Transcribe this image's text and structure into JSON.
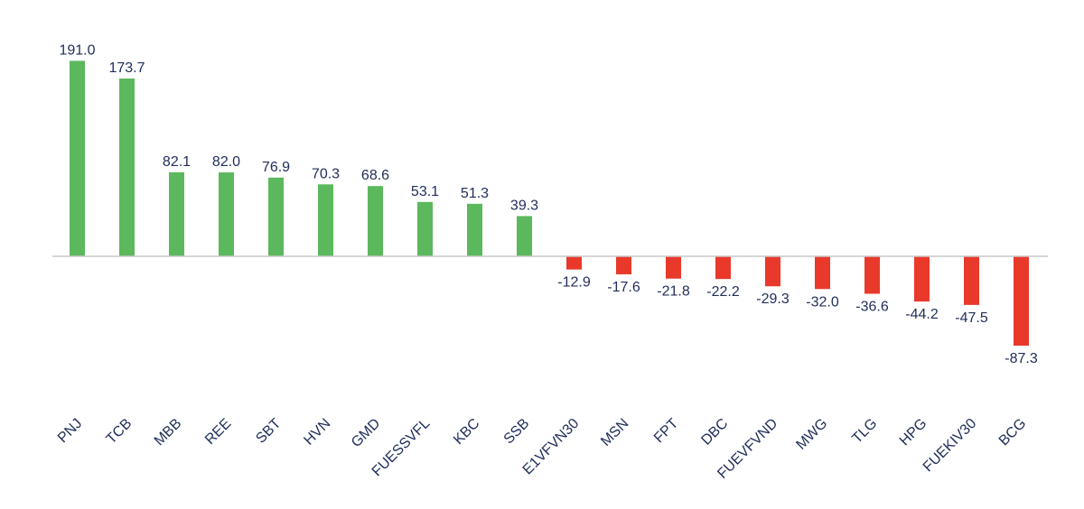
{
  "chart_data": {
    "type": "bar",
    "title": "",
    "xlabel": "",
    "ylabel": "",
    "grid": false,
    "legend": "none",
    "colors": {
      "positive": "#5cb85c",
      "negative": "#e8392b",
      "axis": "#c8c8c8",
      "text": "#1f2d5a"
    },
    "categories": [
      "PNJ",
      "TCB",
      "MBB",
      "REE",
      "SBT",
      "HVN",
      "GMD",
      "FUESSVFL",
      "KBC",
      "SSB",
      "E1VFVN30",
      "MSN",
      "FPT",
      "DBC",
      "FUEVFVND",
      "MWG",
      "TLG",
      "HPG",
      "FUEKIV30",
      "BCG"
    ],
    "values": [
      191.0,
      173.7,
      82.1,
      82.0,
      76.9,
      70.3,
      68.6,
      53.1,
      51.3,
      39.3,
      -12.9,
      -17.6,
      -21.8,
      -22.2,
      -29.3,
      -32.0,
      -36.6,
      -44.2,
      -47.5,
      -87.3
    ],
    "labels": [
      "191.0",
      "173.7",
      "82.1",
      "82.0",
      "76.9",
      "70.3",
      "68.6",
      "53.1",
      "51.3",
      "39.3",
      "-12.9",
      "-17.6",
      "-21.8",
      "-22.2",
      "-29.3",
      "-32.0",
      "-36.6",
      "-44.2",
      "-47.5",
      "-87.3"
    ]
  }
}
